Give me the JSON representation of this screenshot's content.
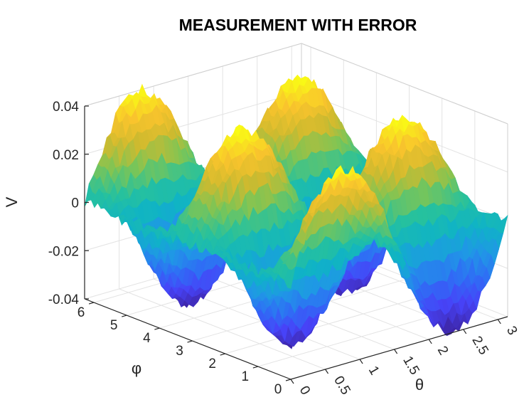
{
  "chart_data": {
    "type": "surface",
    "title": "MEASUREMENT WITH ERROR",
    "xlabel": "θ",
    "ylabel": "φ",
    "zlabel": "V",
    "xlim": [
      0,
      3.14159
    ],
    "ylim": [
      0,
      6.28318
    ],
    "zlim": [
      -0.04,
      0.04
    ],
    "x_ticks": [
      "0",
      "0.5",
      "1",
      "1.5",
      "2",
      "2.5",
      "3"
    ],
    "y_ticks": [
      "0",
      "1",
      "2",
      "3",
      "4",
      "5",
      "6"
    ],
    "z_ticks": [
      "-0.04",
      "-0.02",
      "0",
      "0.02",
      "0.04"
    ],
    "surface_model": {
      "expression": "V = 0.04 * sin(2θ) * cos(2φ) + noise",
      "amplitude": 0.04,
      "theta_frequency": 2,
      "phi_frequency": 2,
      "noise_amplitude": 0.0025,
      "grid_theta_points": 50,
      "grid_phi_points": 64
    },
    "colormap": "parula",
    "colormap_stops": [
      "#3e26a8",
      "#4743f8",
      "#2f6df5",
      "#2097e6",
      "#0fb3c6",
      "#26c19e",
      "#7cc556",
      "#d0ba2e",
      "#f9c42d",
      "#f9fb15"
    ],
    "grid": true,
    "box": "back-planes"
  }
}
